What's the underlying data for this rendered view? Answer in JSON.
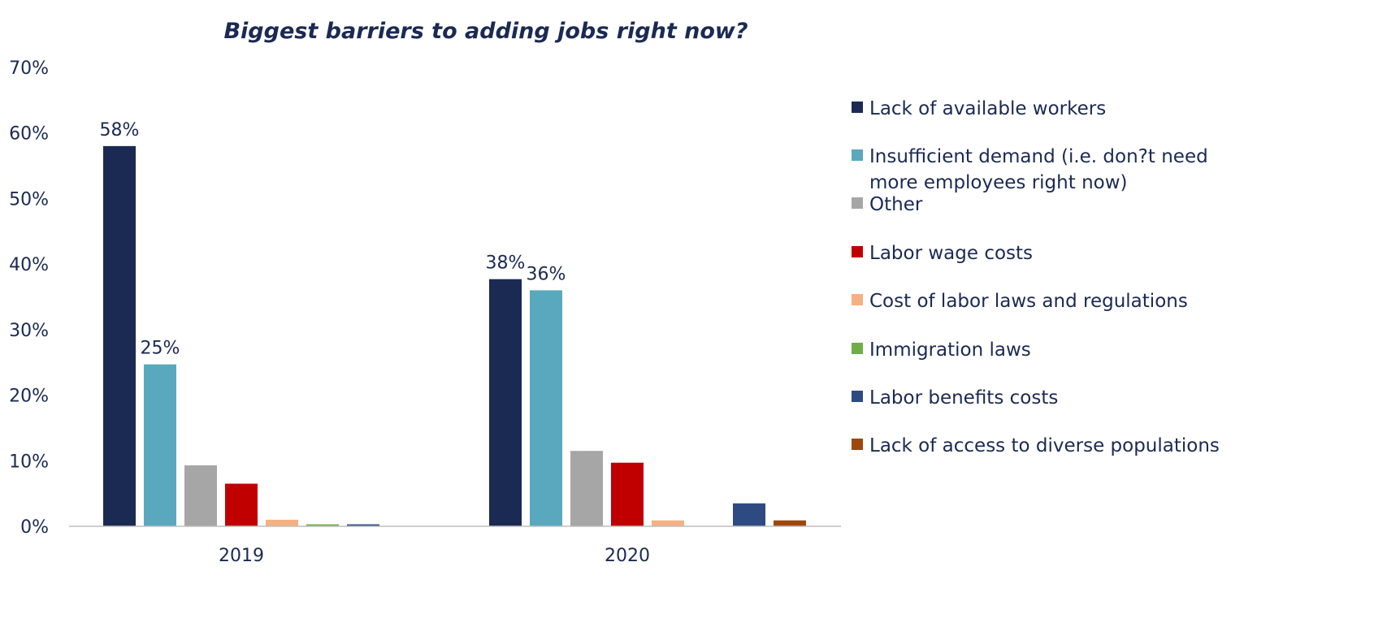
{
  "chart_data": {
    "type": "bar",
    "title": "Biggest barriers to adding jobs right now?",
    "xlabel": "",
    "ylabel": "",
    "ylim": [
      0,
      70
    ],
    "y_ticks": [
      "0%",
      "10%",
      "20%",
      "30%",
      "40%",
      "50%",
      "60%",
      "70%"
    ],
    "categories": [
      "2019",
      "2020"
    ],
    "grid": false,
    "legend_position": "right",
    "series": [
      {
        "name": "Lack of available workers",
        "color": "#1b2a52",
        "values": [
          58,
          37.7
        ],
        "labels": [
          "58%",
          "38%"
        ]
      },
      {
        "name": "Insufficient demand (i.e. don?t need more employees right now)",
        "color": "#5aa8bd",
        "values": [
          24.7,
          36
        ],
        "labels": [
          "25%",
          "36%"
        ]
      },
      {
        "name": "Other",
        "color": "#a6a6a6",
        "values": [
          9.3,
          11.5
        ],
        "labels": [
          "",
          ""
        ]
      },
      {
        "name": "Labor wage costs",
        "color": "#c00000",
        "values": [
          6.5,
          9.7
        ],
        "labels": [
          "",
          ""
        ]
      },
      {
        "name": "Cost of labor laws and regulations",
        "color": "#f4b183",
        "values": [
          1.0,
          0.9
        ],
        "labels": [
          "",
          ""
        ]
      },
      {
        "name": "Immigration laws",
        "color": "#70ad47",
        "values": [
          0.3,
          0
        ],
        "labels": [
          "",
          ""
        ]
      },
      {
        "name": "Labor benefits costs",
        "color": "#2e4a82",
        "values": [
          0.3,
          3.5
        ],
        "labels": [
          "",
          ""
        ]
      },
      {
        "name": "Lack of access to diverse populations",
        "color": "#9e480e",
        "values": [
          0,
          0.9
        ],
        "labels": [
          "",
          ""
        ]
      }
    ]
  }
}
